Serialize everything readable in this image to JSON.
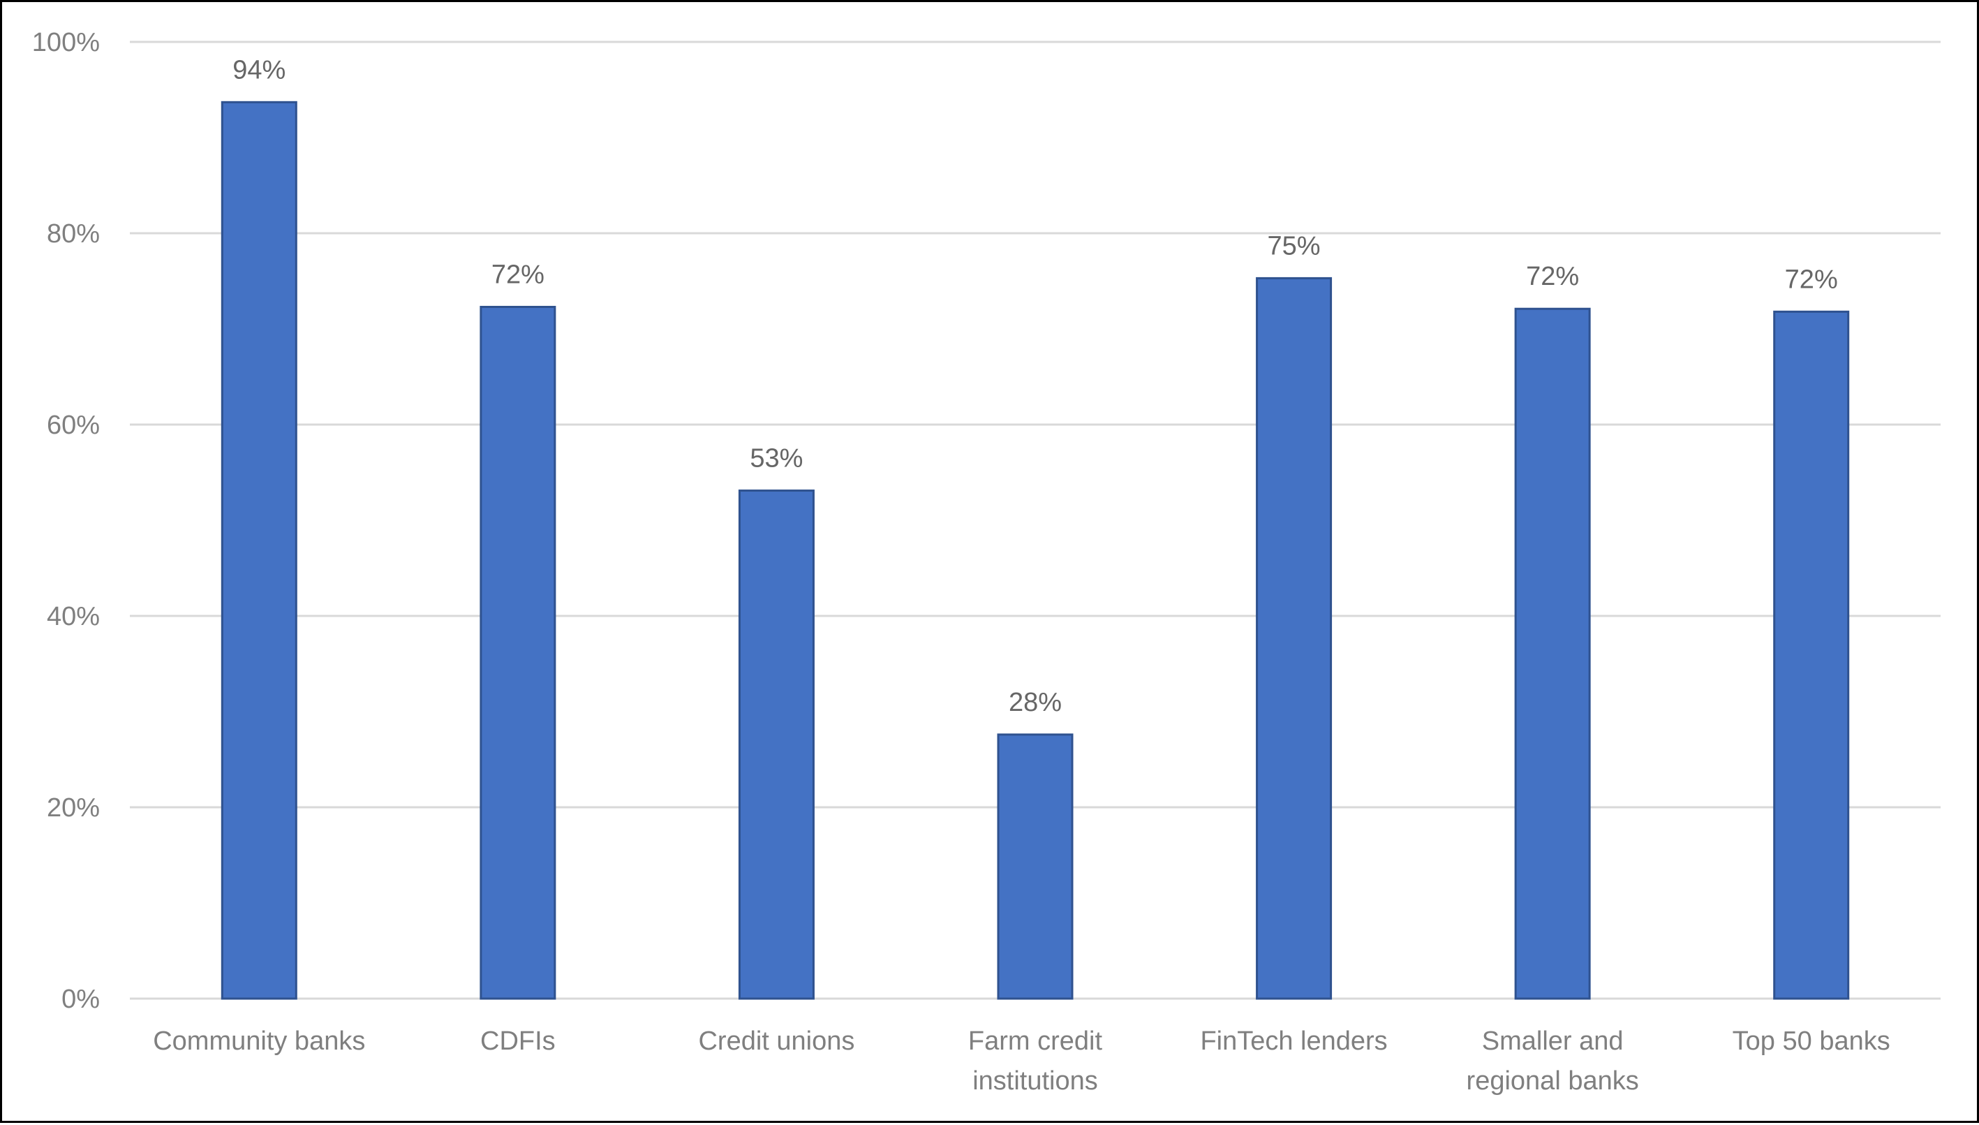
{
  "chart_data": {
    "type": "bar",
    "categories": [
      [
        "Community banks"
      ],
      [
        "CDFIs"
      ],
      [
        "Credit unions"
      ],
      [
        "Farm credit",
        "institutions"
      ],
      [
        "FinTech lenders"
      ],
      [
        "Smaller and",
        "regional banks"
      ],
      [
        "Top 50 banks"
      ]
    ],
    "values": [
      0.94,
      0.72,
      0.53,
      0.28,
      0.75,
      0.72,
      0.72
    ],
    "data_labels": [
      "94%",
      "72%",
      "53%",
      "28%",
      "75%",
      "72%",
      "72%"
    ],
    "bar_heights": [
      0.937,
      0.723,
      0.531,
      0.276,
      0.753,
      0.721,
      0.718
    ],
    "ylim": [
      0,
      1
    ],
    "yticks": [
      0,
      0.2,
      0.4,
      0.6,
      0.8,
      1.0
    ],
    "ytick_labels": [
      "0%",
      "20%",
      "40%",
      "60%",
      "80%",
      "100%"
    ],
    "title": "",
    "xlabel": "",
    "ylabel": "",
    "grid": true,
    "legend": "none",
    "colors": {
      "bar_fill": "#4472C4",
      "bar_stroke": "#2F528F",
      "grid": "#D9D9D9",
      "axis_text": "#7F7F7F",
      "label_text": "#666666",
      "frame": "#000000"
    }
  }
}
